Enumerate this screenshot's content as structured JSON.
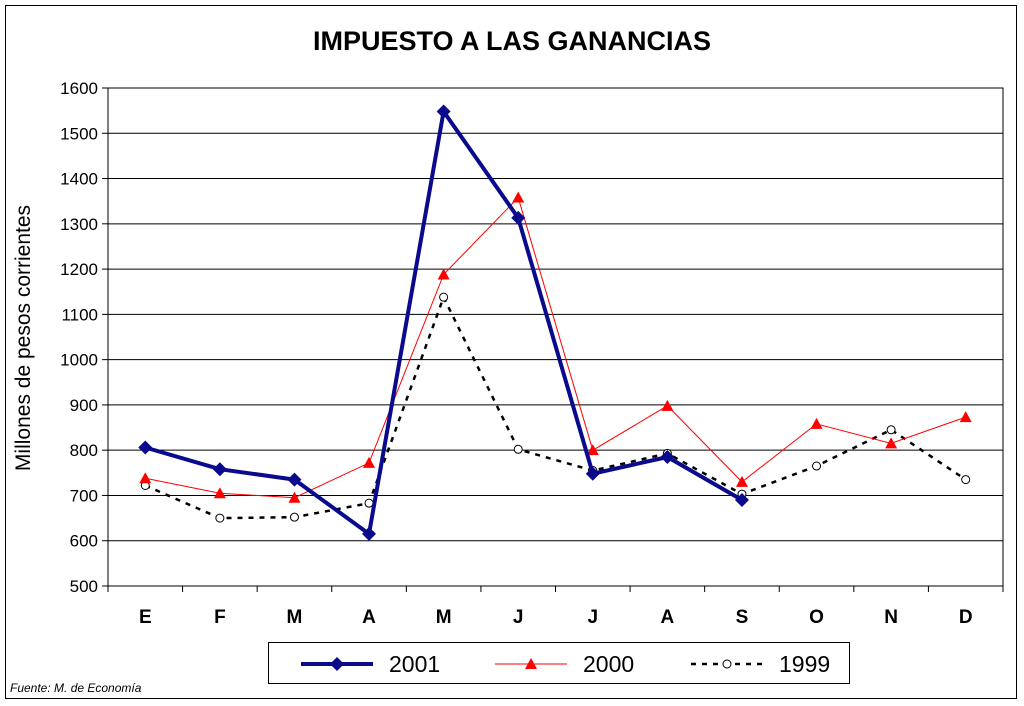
{
  "chart_data": {
    "type": "line",
    "title": "IMPUESTO A LAS GANANCIAS",
    "xlabel": "",
    "ylabel": "Millones de pesos corrientes",
    "categories": [
      "E",
      "F",
      "M",
      "A",
      "M",
      "J",
      "J",
      "A",
      "S",
      "O",
      "N",
      "D"
    ],
    "ylim": [
      500,
      1600
    ],
    "yticks": [
      500,
      600,
      700,
      800,
      900,
      1000,
      1100,
      1200,
      1300,
      1400,
      1500,
      1600
    ],
    "grid": true,
    "legend_position": "bottom",
    "series": [
      {
        "name": "2001",
        "color": "#0a0a8c",
        "marker": "diamond",
        "style": "solid-thick",
        "values": [
          806,
          758,
          735,
          615,
          1548,
          1313,
          748,
          785,
          690,
          null,
          null,
          null
        ]
      },
      {
        "name": "2000",
        "color": "#ff0000",
        "marker": "triangle",
        "style": "solid-thin",
        "values": [
          738,
          705,
          695,
          772,
          1188,
          1358,
          800,
          898,
          730,
          858,
          815,
          873
        ]
      },
      {
        "name": "1999",
        "color": "#000000",
        "marker": "circle-open",
        "style": "dashed",
        "values": [
          722,
          650,
          652,
          683,
          1138,
          802,
          755,
          793,
          703,
          765,
          845,
          735
        ]
      }
    ]
  },
  "footer": {
    "source": "Fuente: M. de Economía"
  }
}
